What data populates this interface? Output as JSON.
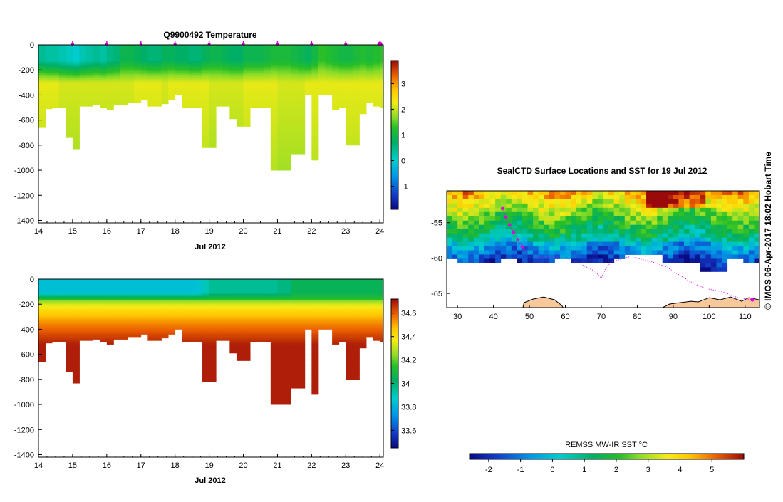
{
  "chart_data": [
    {
      "type": "heatmap",
      "title": "Q9900492  Temperature",
      "xlabel": "Jul 2012",
      "ylabel": "",
      "xlim": [
        14,
        24.1
      ],
      "ylim": [
        -1420,
        0
      ],
      "x_ticks": [
        "14",
        "15",
        "16",
        "17",
        "18",
        "19",
        "20",
        "21",
        "22",
        "23",
        "24"
      ],
      "y_ticks": [
        "0",
        "-200",
        "-400",
        "-600",
        "-800",
        "-1000",
        "-1200",
        "-1400"
      ],
      "colorbar": {
        "range": [
          -1.9,
          3.9
        ],
        "ticks": [
          "3",
          "2",
          "1",
          "0",
          "-1"
        ]
      },
      "surface_markers": [
        15,
        16,
        17,
        18,
        19,
        20,
        21,
        22,
        23,
        24
      ],
      "profiles": {
        "x": [
          14,
          14.2,
          14.4,
          14.6,
          14.8,
          15,
          15.2,
          15.4,
          15.6,
          15.8,
          16,
          16.2,
          16.4,
          16.6,
          16.8,
          17,
          17.2,
          17.4,
          17.6,
          17.8,
          18,
          18.2,
          18.4,
          18.6,
          18.8,
          19,
          19.2,
          19.4,
          19.6,
          19.8,
          20,
          20.2,
          20.4,
          20.6,
          20.8,
          21,
          21.2,
          21.4,
          21.6,
          21.8,
          22,
          22.2,
          22.4,
          22.6,
          22.8,
          23,
          23.2,
          23.4,
          23.6,
          23.8,
          24,
          24.1
        ],
        "max_depth": [
          660,
          510,
          500,
          500,
          740,
          830,
          490,
          490,
          480,
          500,
          520,
          480,
          480,
          460,
          460,
          440,
          490,
          490,
          470,
          440,
          400,
          500,
          500,
          500,
          820,
          820,
          490,
          490,
          590,
          650,
          650,
          500,
          500,
          500,
          1000,
          1000,
          1000,
          870,
          870,
          400,
          920,
          400,
          400,
          520,
          500,
          800,
          800,
          550,
          460,
          490,
          500,
          500
        ],
        "surface_temp": [
          0.4,
          0.3,
          0.3,
          0.2,
          0.1,
          0.0,
          0.2,
          0.3,
          0.4,
          0.3,
          0.5,
          0.6,
          0.9,
          0.9,
          0.8,
          0.7,
          0.6,
          0.6,
          0.8,
          0.8,
          0.7,
          0.7,
          0.6,
          0.6,
          0.8,
          0.9,
          0.9,
          0.8,
          0.7,
          0.7,
          0.9,
          0.9,
          0.9,
          1.0,
          1.1,
          1.1,
          1.1,
          1.0,
          0.9,
          0.8,
          1.0,
          1.3,
          1.2,
          1.1,
          1.0,
          1.0,
          1.1,
          1.2,
          1.1,
          1.2,
          1.3,
          1.3
        ],
        "deep_temp": [
          2.2,
          2.2,
          2.2,
          2.1,
          2.1,
          2.1,
          2.1,
          2.1,
          2.1,
          2.1,
          2.1,
          2.1,
          2.1,
          2.1,
          2.2,
          2.2,
          2.2,
          2.2,
          2.1,
          2.2,
          2.2,
          2.2,
          2.2,
          2.2,
          2.2,
          2.1,
          2.1,
          2.1,
          2.1,
          2.1,
          2.2,
          2.2,
          2.2,
          2.2,
          2.2,
          2.1,
          2.1,
          2.1,
          2.1,
          2.2,
          2.2,
          2.2,
          2.2,
          2.2,
          2.2,
          2.2,
          2.2,
          2.2,
          2.2,
          2.2,
          2.2,
          2.2
        ]
      }
    },
    {
      "type": "heatmap",
      "title": "",
      "xlabel": "Jul 2012",
      "ylabel": "",
      "xlim": [
        14,
        24.1
      ],
      "ylim": [
        -1420,
        0
      ],
      "x_ticks": [
        "14",
        "15",
        "16",
        "17",
        "18",
        "19",
        "20",
        "21",
        "22",
        "23",
        "24"
      ],
      "y_ticks": [
        "0",
        "-200",
        "-400",
        "-600",
        "-800",
        "-1000",
        "-1200",
        "-1400"
      ],
      "colorbar": {
        "range": [
          33.45,
          34.72
        ],
        "ticks": [
          "34.6",
          "34.4",
          "34.2",
          "34",
          "33.8",
          "33.6"
        ]
      },
      "profiles": {
        "surface_sal": [
          33.83,
          33.83,
          33.83,
          33.83,
          33.83,
          33.83,
          33.83,
          33.83,
          33.83,
          33.83,
          33.83,
          33.83,
          33.83,
          33.83,
          33.83,
          33.83,
          33.83,
          33.83,
          33.83,
          33.83,
          33.83,
          33.83,
          33.83,
          33.84,
          33.9,
          33.95,
          33.95,
          33.95,
          33.95,
          33.95,
          33.95,
          33.95,
          33.95,
          33.95,
          33.95,
          33.98,
          33.98,
          34.05,
          34.05,
          34.05,
          34.05,
          34.05,
          34.05,
          34.05,
          34.05,
          34.05,
          34.05,
          34.05,
          34.05,
          34.05,
          34.05,
          34.05
        ],
        "deep_sal": [
          34.69,
          34.69,
          34.69,
          34.69,
          34.69,
          34.69,
          34.69,
          34.69,
          34.69,
          34.69,
          34.69,
          34.69,
          34.69,
          34.69,
          34.69,
          34.69,
          34.69,
          34.69,
          34.69,
          34.69,
          34.69,
          34.69,
          34.69,
          34.69,
          34.69,
          34.69,
          34.69,
          34.69,
          34.69,
          34.69,
          34.69,
          34.69,
          34.69,
          34.69,
          34.69,
          34.69,
          34.69,
          34.69,
          34.69,
          34.69,
          34.69,
          34.69,
          34.69,
          34.69,
          34.69,
          34.69,
          34.69,
          34.69,
          34.69,
          34.69,
          34.69,
          34.69
        ]
      }
    },
    {
      "type": "heatmap",
      "title": "SealCTD Surface Locations and SST for 19 Jul 2012",
      "xlabel": "",
      "ylabel": "",
      "xlim": [
        27,
        114
      ],
      "ylim": [
        -67,
        -50.5
      ],
      "x_ticks": [
        "30",
        "40",
        "50",
        "60",
        "70",
        "80",
        "90",
        "100",
        "110"
      ],
      "y_ticks": [
        "-55",
        "-60",
        "-65"
      ],
      "colorbar": {
        "label": "REMSS MW-IR SST °C",
        "range": [
          -2.6,
          6
        ],
        "ticks": [
          "-2",
          "-1",
          "0",
          "1",
          "2",
          "3",
          "4",
          "5"
        ]
      },
      "track": [
        [
          42.5,
          -53
        ],
        [
          43.5,
          -54.2
        ],
        [
          44.5,
          -55.3
        ],
        [
          45.6,
          -56.4
        ],
        [
          46.8,
          -57.4
        ],
        [
          48,
          -58.4
        ],
        [
          50,
          -59.6
        ],
        [
          54,
          -59.9
        ],
        [
          60,
          -60
        ],
        [
          64,
          -60.8
        ],
        [
          68,
          -61.8
        ],
        [
          70,
          -62.8
        ],
        [
          71.5,
          -61.2
        ],
        [
          73,
          -60.5
        ],
        [
          78,
          -59.8
        ],
        [
          84,
          -60.5
        ],
        [
          88,
          -61.2
        ],
        [
          92,
          -62.5
        ],
        [
          96,
          -63.7
        ],
        [
          100,
          -64.4
        ],
        [
          104,
          -64.8
        ],
        [
          108,
          -65.6
        ],
        [
          112,
          -65.9
        ]
      ]
    }
  ],
  "side_caption": "©  IMOS 06-Apr-2017 18:02 Hobart Time"
}
